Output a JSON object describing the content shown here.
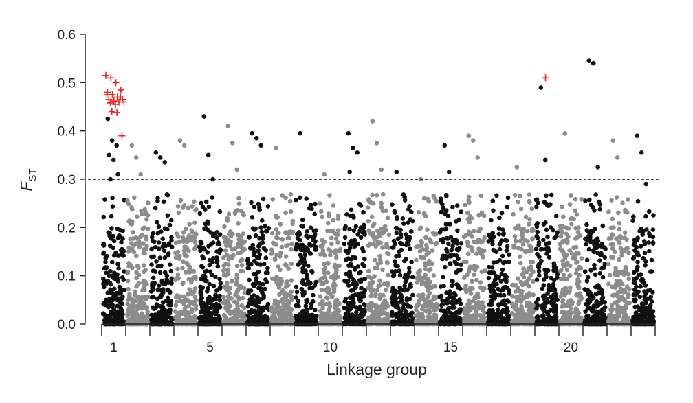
{
  "chart_data": {
    "type": "scatter",
    "title": "",
    "xlabel": "Linkage group",
    "ylabel_main": "F",
    "ylabel_sub": "ST",
    "ylim": [
      0,
      0.6
    ],
    "yticks": [
      "0.0",
      "0.1",
      "0.2",
      "0.3",
      "0.4",
      "0.5",
      "0.6"
    ],
    "linkage_groups": [
      1,
      2,
      3,
      4,
      5,
      6,
      7,
      8,
      9,
      10,
      11,
      12,
      13,
      14,
      15,
      16,
      17,
      18,
      19,
      20,
      21,
      22,
      23
    ],
    "xtick_labels": [
      {
        "group": 1,
        "label": "1"
      },
      {
        "group": 5,
        "label": "5"
      },
      {
        "group": 10,
        "label": "10"
      },
      {
        "group": 15,
        "label": "15"
      },
      {
        "group": 20,
        "label": "20"
      }
    ],
    "threshold": 0.3,
    "grid": false,
    "colors": {
      "odd_groups": "#111111",
      "even_groups": "#8c8c8c",
      "outliers": "#e8231f",
      "threshold": "#111111"
    },
    "outliers": [
      {
        "group": 1,
        "values": [
          0.515,
          0.51,
          0.5,
          0.485,
          0.48,
          0.475,
          0.47,
          0.465,
          0.465,
          0.462,
          0.46,
          0.46,
          0.458,
          0.455,
          0.47,
          0.475,
          0.44,
          0.438,
          0.39
        ]
      },
      {
        "group": 19,
        "values": [
          0.51
        ]
      }
    ],
    "top_points": [
      {
        "group": 1,
        "values": [
          0.425,
          0.38,
          0.37,
          0.35,
          0.34,
          0.31,
          0.3
        ]
      },
      {
        "group": 2,
        "values": [
          0.37,
          0.345,
          0.31
        ]
      },
      {
        "group": 3,
        "values": [
          0.355,
          0.345,
          0.335
        ]
      },
      {
        "group": 4,
        "values": [
          0.38,
          0.37
        ]
      },
      {
        "group": 5,
        "values": [
          0.43,
          0.35,
          0.3
        ]
      },
      {
        "group": 6,
        "values": [
          0.41,
          0.375,
          0.32
        ]
      },
      {
        "group": 7,
        "values": [
          0.395,
          0.385,
          0.37
        ]
      },
      {
        "group": 8,
        "values": [
          0.365
        ]
      },
      {
        "group": 9,
        "values": [
          0.395
        ]
      },
      {
        "group": 10,
        "values": [
          0.31
        ]
      },
      {
        "group": 11,
        "values": [
          0.395,
          0.365,
          0.355,
          0.315
        ]
      },
      {
        "group": 12,
        "values": [
          0.42,
          0.375,
          0.32
        ]
      },
      {
        "group": 13,
        "values": [
          0.315
        ]
      },
      {
        "group": 14,
        "values": [
          0.3
        ]
      },
      {
        "group": 15,
        "values": [
          0.37,
          0.315
        ]
      },
      {
        "group": 16,
        "values": [
          0.39,
          0.38,
          0.345
        ]
      },
      {
        "group": 17,
        "values": [
          0.255
        ]
      },
      {
        "group": 18,
        "values": [
          0.325
        ]
      },
      {
        "group": 19,
        "values": [
          0.49,
          0.34
        ]
      },
      {
        "group": 20,
        "values": [
          0.395
        ]
      },
      {
        "group": 21,
        "values": [
          0.545,
          0.54,
          0.325
        ]
      },
      {
        "group": 22,
        "values": [
          0.38,
          0.345
        ]
      },
      {
        "group": 23,
        "values": [
          0.39,
          0.355,
          0.29
        ]
      }
    ]
  }
}
